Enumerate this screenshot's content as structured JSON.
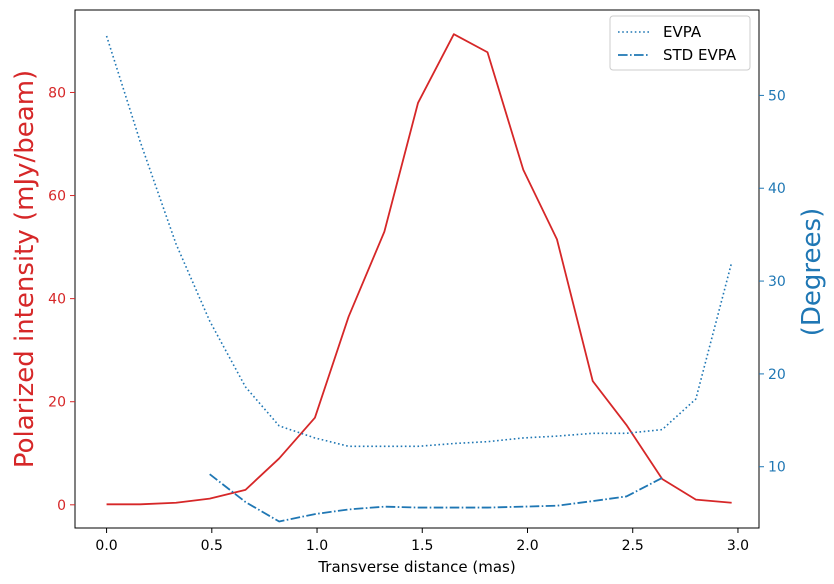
{
  "chart_data": {
    "type": "line",
    "xlabel": "Transverse distance (mas)",
    "ylabel_left": "Polarized intensity (mJy/beam)",
    "ylabel_right": "(Degrees)",
    "xlim": [
      -0.15,
      3.1
    ],
    "ylim_left": [
      -4.5,
      96
    ],
    "ylim_right": [
      3.4,
      59.2
    ],
    "x_ticks": [
      0.0,
      0.5,
      1.0,
      1.5,
      2.0,
      2.5,
      3.0
    ],
    "x_tick_labels": [
      "0.0",
      "0.5",
      "1.0",
      "1.5",
      "2.0",
      "2.5",
      "3.0"
    ],
    "y_left_ticks": [
      0,
      20,
      40,
      60,
      80
    ],
    "y_left_tick_labels": [
      "0",
      "20",
      "40",
      "60",
      "80"
    ],
    "y_right_ticks": [
      10,
      20,
      30,
      40,
      50
    ],
    "y_right_tick_labels": [
      "10",
      "20",
      "30",
      "40",
      "50"
    ],
    "legend": {
      "placement": "top-right",
      "entries": [
        "EVPA",
        "STD EVPA"
      ]
    },
    "colors": {
      "left_axis": "#d62728",
      "right_axis": "#1f77b4",
      "frame": "#000000"
    },
    "series": [
      {
        "name": "Polarized intensity",
        "axis": "left",
        "style": "solid",
        "color": "#d62728",
        "x": [
          0.0,
          0.16,
          0.33,
          0.49,
          0.66,
          0.82,
          0.99,
          1.15,
          1.32,
          1.48,
          1.65,
          1.81,
          1.98,
          2.14,
          2.31,
          2.47,
          2.64,
          2.8,
          2.97
        ],
        "y": [
          0.1,
          0.1,
          0.4,
          1.2,
          2.9,
          9.0,
          16.9,
          36.5,
          53.0,
          78.0,
          91.3,
          87.8,
          65.0,
          51.5,
          24.0,
          15.5,
          5.0,
          1.0,
          0.4
        ]
      },
      {
        "name": "EVPA",
        "axis": "right",
        "style": "dotted",
        "color": "#1f77b4",
        "x": [
          0.0,
          0.16,
          0.33,
          0.49,
          0.66,
          0.82,
          0.99,
          1.15,
          1.32,
          1.48,
          1.65,
          1.81,
          1.98,
          2.14,
          2.31,
          2.47,
          2.64,
          2.8,
          2.97
        ],
        "y": [
          56.4,
          45.0,
          34.0,
          25.7,
          18.6,
          14.4,
          13.1,
          12.2,
          12.2,
          12.2,
          12.5,
          12.7,
          13.1,
          13.3,
          13.6,
          13.6,
          14.0,
          17.3,
          32.0
        ]
      },
      {
        "name": "STD EVPA",
        "axis": "right",
        "style": "dashdot",
        "color": "#1f77b4",
        "x": [
          0.49,
          0.66,
          0.82,
          0.99,
          1.15,
          1.32,
          1.48,
          1.65,
          1.81,
          1.98,
          2.14,
          2.31,
          2.47,
          2.64
        ],
        "y": [
          9.2,
          6.2,
          4.1,
          4.9,
          5.4,
          5.7,
          5.6,
          5.6,
          5.6,
          5.7,
          5.8,
          6.3,
          6.8,
          8.8
        ]
      }
    ]
  }
}
